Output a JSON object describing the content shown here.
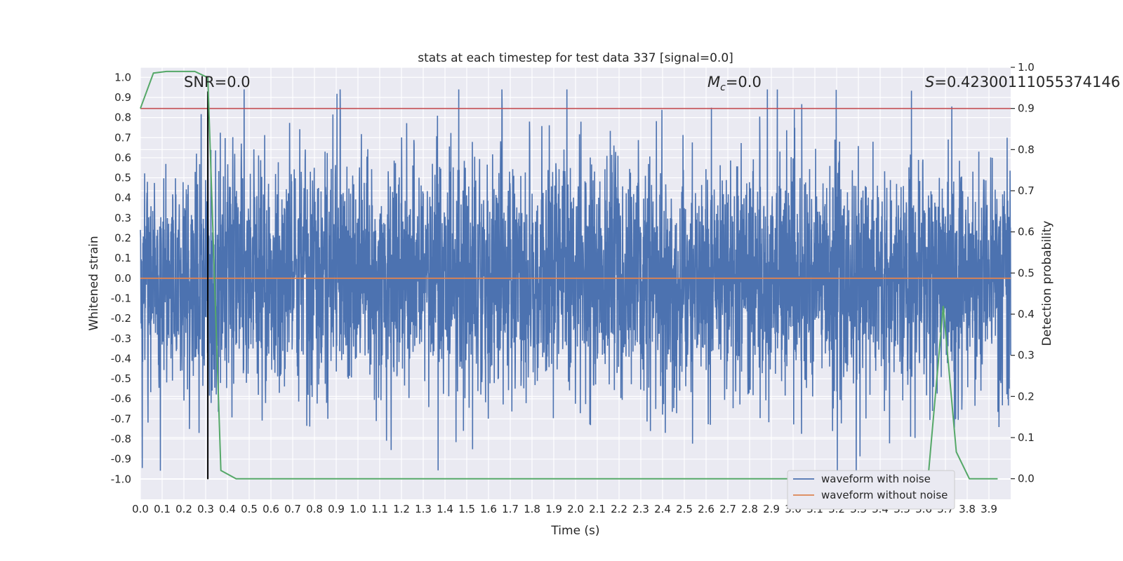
{
  "chart_data": {
    "type": "line",
    "title": "stats at each timestep for test data 337 [signal=0.0]",
    "xlabel": "Time (s)",
    "ylabel": "Whitened strain",
    "ylabel_right": "Detection probability",
    "xlim": [
      0.0,
      4.0
    ],
    "ylim": [
      -1.1,
      1.05
    ],
    "ylim_right": [
      -0.05,
      1.0
    ],
    "x_ticks": [
      "0.0",
      "0.1",
      "0.2",
      "0.3",
      "0.4",
      "0.5",
      "0.6",
      "0.7",
      "0.8",
      "0.9",
      "1.0",
      "1.1",
      "1.2",
      "1.3",
      "1.4",
      "1.5",
      "1.6",
      "1.7",
      "1.8",
      "1.9",
      "2.0",
      "2.1",
      "2.2",
      "2.3",
      "2.4",
      "2.5",
      "2.6",
      "2.7",
      "2.8",
      "2.9",
      "3.0",
      "3.1",
      "3.2",
      "3.3",
      "3.4",
      "3.5",
      "3.6",
      "3.7",
      "3.8",
      "3.9"
    ],
    "y_ticks": [
      "1.0",
      "0.9",
      "0.8",
      "0.7",
      "0.6",
      "0.5",
      "0.4",
      "0.3",
      "0.2",
      "0.1",
      "0.0",
      "-0.1",
      "-0.2",
      "-0.3",
      "-0.4",
      "-0.5",
      "-0.6",
      "-0.7",
      "-0.8",
      "-0.9",
      "-1.0"
    ],
    "y_right_ticks": [
      "1.0",
      "0.9",
      "0.8",
      "0.7",
      "0.6",
      "0.5",
      "0.4",
      "0.3",
      "0.2",
      "0.1",
      "0.0"
    ],
    "annotations": {
      "snr": "SNR=0.0",
      "mc_symbol": "M",
      "mc_sub": "c",
      "mc_value": "=0.0",
      "s_symbol": "S",
      "s_value": "=0.42300111055374146"
    },
    "threshold_right": 0.9,
    "peak_time": 0.31,
    "series": [
      {
        "name": "waveform with noise",
        "color": "#4c72b0",
        "seed": 337,
        "samples": 4096,
        "t_range": [
          0.0,
          4.0
        ]
      },
      {
        "name": "waveform without noise",
        "color": "#dd8452",
        "x": [
          0.0,
          4.0
        ],
        "y": [
          0.0,
          0.0
        ]
      },
      {
        "name": "detection probability",
        "color": "#55a868",
        "axis": "right",
        "x": [
          0.0,
          0.06,
          0.12,
          0.18,
          0.25,
          0.31,
          0.37,
          0.44,
          3.31,
          3.37,
          3.44,
          3.5,
          3.56,
          3.62,
          3.69,
          3.75,
          3.81,
          3.87,
          3.94
        ],
        "y": [
          0.9,
          0.986,
          0.99,
          0.99,
          0.99,
          0.975,
          0.02,
          0.0,
          0.0,
          0.0,
          0.0,
          0.0,
          0.0,
          0.0,
          0.42,
          0.065,
          0.0,
          0.0,
          0.0
        ]
      }
    ],
    "colors": {
      "threshold": "#c44e52",
      "peak_line": "#000000",
      "background": "#eaeaf2",
      "grid": "#ffffff"
    },
    "legend": {
      "placement": "lower-right",
      "entries": [
        "waveform with noise",
        "waveform without noise"
      ]
    }
  }
}
